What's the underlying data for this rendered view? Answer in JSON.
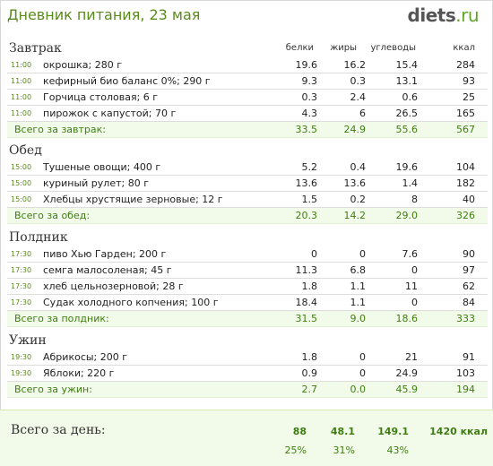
{
  "header": {
    "title": "Дневник питания, 23 мая",
    "logo_main": "diets",
    "logo_tld": ".ru"
  },
  "columns": {
    "protein": "белки",
    "fat": "жиры",
    "carbs": "углеводы",
    "kcal": "ккал"
  },
  "meals": [
    {
      "title": "Завтрак",
      "items": [
        {
          "time": "11:00",
          "food": "окрошка; 280 г",
          "p": "19.6",
          "f": "16.2",
          "c": "15.4",
          "k": "284"
        },
        {
          "time": "11:00",
          "food": "кефирный био баланс 0%; 290 г",
          "p": "9.3",
          "f": "0.3",
          "c": "13.1",
          "k": "93"
        },
        {
          "time": "11:00",
          "food": "Горчица столовая; 6 г",
          "p": "0.3",
          "f": "2.4",
          "c": "0.6",
          "k": "25"
        },
        {
          "time": "11:00",
          "food": "пирожок с капустой; 70 г",
          "p": "4.3",
          "f": "6",
          "c": "26.5",
          "k": "165"
        }
      ],
      "total": {
        "label": "Всего за завтрак:",
        "p": "33.5",
        "f": "24.9",
        "c": "55.6",
        "k": "567"
      }
    },
    {
      "title": "Обед",
      "items": [
        {
          "time": "15:00",
          "food": "Тушеные овощи; 400 г",
          "p": "5.2",
          "f": "0.4",
          "c": "19.6",
          "k": "104"
        },
        {
          "time": "15:00",
          "food": "куриный рулет; 80 г",
          "p": "13.6",
          "f": "13.6",
          "c": "1.4",
          "k": "182"
        },
        {
          "time": "15:00",
          "food": "Хлебцы хрустящие зерновые; 12 г",
          "p": "1.5",
          "f": "0.2",
          "c": "8",
          "k": "40"
        }
      ],
      "total": {
        "label": "Всего за обед:",
        "p": "20.3",
        "f": "14.2",
        "c": "29.0",
        "k": "326"
      }
    },
    {
      "title": "Полдник",
      "items": [
        {
          "time": "17:30",
          "food": "пиво Хью Гарден; 200 г",
          "p": "0",
          "f": "0",
          "c": "7.6",
          "k": "90"
        },
        {
          "time": "17:30",
          "food": "семга малосоленая; 45 г",
          "p": "11.3",
          "f": "6.8",
          "c": "0",
          "k": "97"
        },
        {
          "time": "17:30",
          "food": "хлеб цельнозерновой; 28 г",
          "p": "1.8",
          "f": "1.1",
          "c": "11",
          "k": "62"
        },
        {
          "time": "17:30",
          "food": "Судак холодного копчения; 100 г",
          "p": "18.4",
          "f": "1.1",
          "c": "0",
          "k": "84"
        }
      ],
      "total": {
        "label": "Всего за полдник:",
        "p": "31.5",
        "f": "9.0",
        "c": "18.6",
        "k": "333"
      }
    },
    {
      "title": "Ужин",
      "items": [
        {
          "time": "19:30",
          "food": "Абрикосы; 200 г",
          "p": "1.8",
          "f": "0",
          "c": "21",
          "k": "91"
        },
        {
          "time": "19:30",
          "food": "Яблоки; 220 г",
          "p": "0.9",
          "f": "0",
          "c": "24.9",
          "k": "103"
        }
      ],
      "total": {
        "label": "Всего за ужин:",
        "p": "2.7",
        "f": "0.0",
        "c": "45.9",
        "k": "194"
      }
    }
  ],
  "day_total": {
    "label": "Всего за день:",
    "p": "88",
    "f": "48.1",
    "c": "149.1",
    "k": "1420 ккал",
    "p_pct": "25%",
    "f_pct": "31%",
    "c_pct": "43%"
  }
}
